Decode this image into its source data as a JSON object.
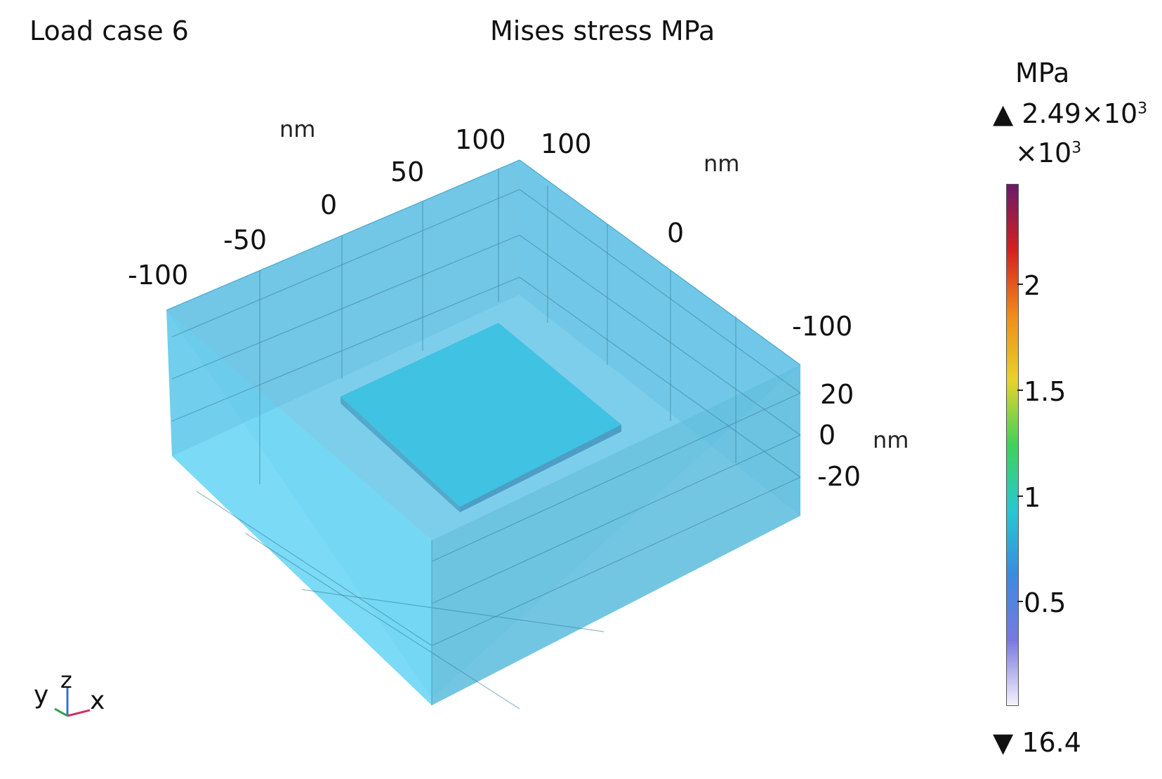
{
  "load_case": "Load case 6",
  "title": "Mises stress MPa",
  "axes": {
    "x": {
      "unit": "nm",
      "ticks": [
        "-100",
        "-50",
        "0",
        "50",
        "100"
      ]
    },
    "y": {
      "unit": "nm",
      "ticks": [
        "100",
        "0",
        "-100"
      ]
    },
    "z": {
      "unit": "nm",
      "ticks": [
        "20",
        "0",
        "-20"
      ]
    }
  },
  "colorbar": {
    "unit": "MPa",
    "max_label": "2.49×10",
    "max_exp": "3",
    "scale_label": "×10",
    "scale_exp": "3",
    "ticks": [
      "2",
      "1.5",
      "1",
      "0.5"
    ],
    "min_label": "16.4",
    "up_arrow": "▲",
    "down_arrow": "▼",
    "colors": [
      "#6a1a6a",
      "#d42020",
      "#f08a1a",
      "#e8d22a",
      "#3fd25a",
      "#27c8d2",
      "#3a8be0",
      "#7a78e0",
      "#f4f2fb"
    ]
  },
  "triad": {
    "y": "y",
    "z": "z",
    "x": "x"
  },
  "colors": {
    "block": "#6ccfea",
    "plate": "#3fbde0",
    "grid": "#3e7f97"
  }
}
